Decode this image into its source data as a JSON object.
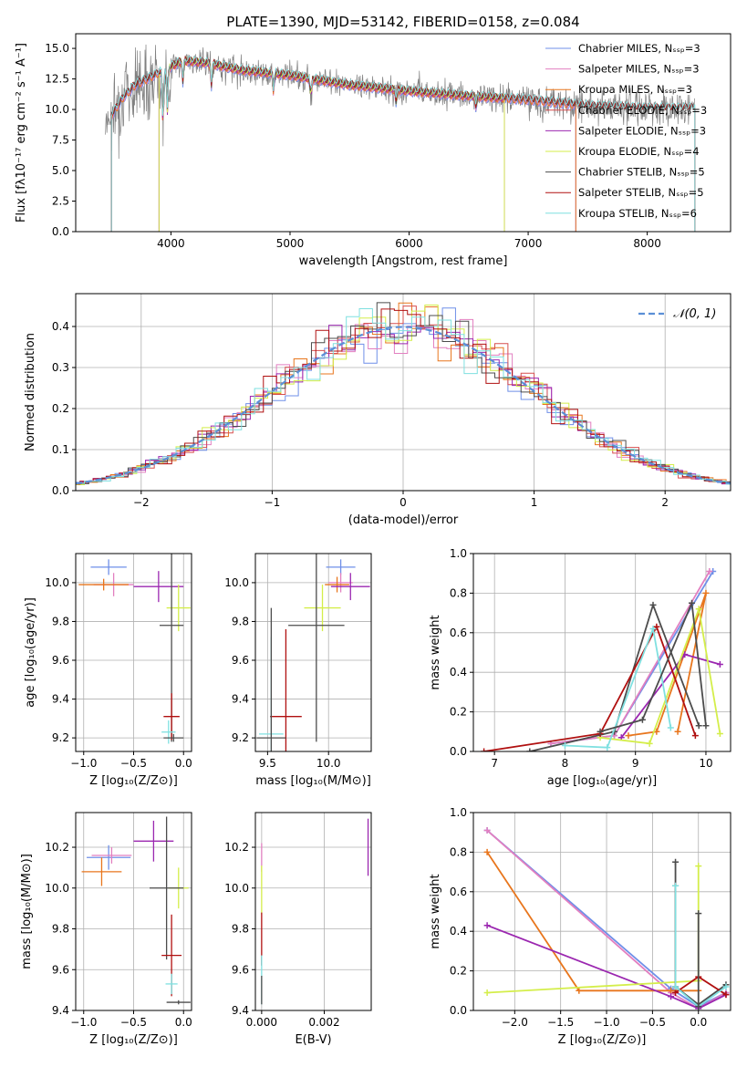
{
  "colors": {
    "Chabrier MILES": "#6f8fe8",
    "Salpeter MILES": "#e27fc0",
    "Kroupa MILES": "#e8761d",
    "Chabrier ELODIE": "#d64f4f",
    "Salpeter ELODIE": "#9b27b0",
    "Kroupa ELODIE": "#d4ee4a",
    "Chabrier STELIB": "#4c4c4c",
    "Salpeter STELIB": "#b01010",
    "Kroupa STELIB": "#7fe0e0",
    "gaussian": "#5b8fd6",
    "observed": "#808080"
  },
  "chart_data": [
    {
      "id": "spectrum",
      "type": "line",
      "title": "PLATE=1390, MJD=53142, FIBERID=0158, z=0.084",
      "xlabel": "wavelength [Angstrom, rest frame]",
      "ylabel": "Flux [fλ10⁻¹⁷ erg cm⁻² s⁻¹ A⁻¹]",
      "xlim": [
        3200,
        8700
      ],
      "ylim": [
        0,
        16.2
      ],
      "xticks": [
        4000,
        5000,
        6000,
        7000,
        8000
      ],
      "yticks": [
        0.0,
        2.5,
        5.0,
        7.5,
        10.0,
        12.5,
        15.0
      ],
      "legend_position": "top-right",
      "series": [
        {
          "name": "Chabrier MILES, Nₛₛₚ=3",
          "key": "Chabrier MILES",
          "range": [
            3500,
            7400
          ]
        },
        {
          "name": "Salpeter MILES, Nₛₛₚ=3",
          "key": "Salpeter MILES",
          "range": [
            3500,
            7400
          ]
        },
        {
          "name": "Kroupa MILES, Nₛₛₚ=3",
          "key": "Kroupa MILES",
          "range": [
            3500,
            7400
          ]
        },
        {
          "name": "Chabrier ELODIE, Nₛₛₚ=3",
          "key": "Chabrier ELODIE",
          "range": [
            3900,
            6800
          ]
        },
        {
          "name": "Salpeter ELODIE, Nₛₛₚ=3",
          "key": "Salpeter ELODIE",
          "range": [
            3900,
            6800
          ]
        },
        {
          "name": "Kroupa ELODIE, Nₛₛₚ=4",
          "key": "Kroupa ELODIE",
          "range": [
            3900,
            6800
          ]
        },
        {
          "name": "Chabrier STELIB, Nₛₛₚ=5",
          "key": "Chabrier STELIB",
          "range": [
            3500,
            8400
          ]
        },
        {
          "name": "Salpeter STELIB, Nₛₛₚ=5",
          "key": "Salpeter STELIB",
          "range": [
            3500,
            8400
          ]
        },
        {
          "name": "Kroupa STELIB, Nₛₛₚ=6",
          "key": "Kroupa STELIB",
          "range": [
            3500,
            8400
          ]
        }
      ],
      "continuum": [
        [
          3500,
          9.5
        ],
        [
          3600,
          11.0
        ],
        [
          3700,
          12.0
        ],
        [
          3900,
          13.0
        ],
        [
          4100,
          14.0
        ],
        [
          4300,
          13.8
        ],
        [
          4600,
          13.2
        ],
        [
          5000,
          12.8
        ],
        [
          5500,
          12.0
        ],
        [
          6000,
          11.5
        ],
        [
          6500,
          11.1
        ],
        [
          7000,
          10.8
        ],
        [
          7500,
          10.3
        ],
        [
          8000,
          10.1
        ],
        [
          8400,
          10.1
        ]
      ],
      "observed_range": [
        3450,
        8400
      ]
    },
    {
      "id": "residuals",
      "type": "histogram",
      "xlabel": "(data-model)/error",
      "ylabel": "Normed distribution",
      "xlim": [
        -2.5,
        2.5
      ],
      "ylim": [
        0,
        0.48
      ],
      "xticks": [
        -2,
        -1,
        0,
        1,
        2
      ],
      "yticks": [
        0.0,
        0.1,
        0.2,
        0.3,
        0.4
      ],
      "legend": "𝒩(0, 1)",
      "legend_position": "top-right",
      "bin_width": 0.1,
      "gaussian": {
        "mean": 0,
        "sigma": 1
      }
    },
    {
      "id": "age-vs-Z",
      "type": "errorbar",
      "xlabel": "Z [log₁₀(Z/Z⊙)]",
      "ylabel": "age  [log₁₀(age/yr)]",
      "xlim": [
        -1.08,
        0.08
      ],
      "ylim": [
        9.13,
        10.15
      ],
      "xticks": [
        -1.0,
        -0.5,
        0.0
      ],
      "yticks": [
        9.2,
        9.4,
        9.6,
        9.8,
        10.0
      ],
      "points": [
        {
          "key": "Chabrier MILES",
          "x": -0.75,
          "xerr": 0.18,
          "y": 10.08,
          "yerr": 0.04
        },
        {
          "key": "Salpeter MILES",
          "x": -0.7,
          "xerr": 0.2,
          "y": 9.99,
          "yerr": 0.06
        },
        {
          "key": "Kroupa MILES",
          "x": -0.8,
          "xerr": 0.25,
          "y": 9.99,
          "yerr": 0.03
        },
        {
          "key": "Salpeter ELODIE",
          "x": -0.25,
          "xerr": 0.25,
          "y": 9.98,
          "yerr": 0.08
        },
        {
          "key": "Kroupa ELODIE",
          "x": -0.05,
          "xerr": 0.12,
          "y": 9.87,
          "yerr": 0.12
        },
        {
          "key": "Chabrier STELIB",
          "x": -0.12,
          "xerr": 0.12,
          "y": 9.78,
          "yerr": 0.6
        },
        {
          "key": "Salpeter STELIB",
          "x": -0.12,
          "xerr": 0.08,
          "y": 9.31,
          "yerr": 0.12
        },
        {
          "key": "Kroupa STELIB",
          "x": -0.15,
          "xerr": 0.07,
          "y": 9.23,
          "yerr": 0.06
        },
        {
          "key": "Chabrier STELIB",
          "x": -0.1,
          "xerr": 0.1,
          "y": 9.2,
          "yerr": 0.02
        }
      ]
    },
    {
      "id": "age-vs-mass",
      "type": "errorbar",
      "xlabel": "mass [log₁₀(M/M⊙)]",
      "xlim": [
        9.4,
        10.35
      ],
      "ylim": [
        9.13,
        10.15
      ],
      "xticks": [
        9.5,
        10.0
      ],
      "yticks": [
        9.2,
        9.4,
        9.6,
        9.8,
        10.0
      ],
      "points": [
        {
          "key": "Chabrier MILES",
          "x": 10.1,
          "xerr": 0.12,
          "y": 10.08,
          "yerr": 0.04
        },
        {
          "key": "Salpeter MILES",
          "x": 10.1,
          "xerr": 0.1,
          "y": 10.0,
          "yerr": 0.05
        },
        {
          "key": "Kroupa MILES",
          "x": 10.07,
          "xerr": 0.1,
          "y": 9.99,
          "yerr": 0.04
        },
        {
          "key": "Salpeter ELODIE",
          "x": 10.18,
          "xerr": 0.16,
          "y": 9.98,
          "yerr": 0.07
        },
        {
          "key": "Kroupa ELODIE",
          "x": 9.95,
          "xerr": 0.15,
          "y": 9.87,
          "yerr": 0.12
        },
        {
          "key": "Chabrier STELIB",
          "x": 9.9,
          "xerr": 0.23,
          "y": 9.78,
          "yerr": 0.6
        },
        {
          "key": "Salpeter STELIB",
          "x": 9.65,
          "xerr": 0.13,
          "y": 9.31,
          "yerr": 0.45
        },
        {
          "key": "Kroupa STELIB",
          "x": 9.53,
          "xerr": 0.1,
          "y": 9.22,
          "yerr": 0.5
        },
        {
          "key": "Chabrier STELIB",
          "x": 9.53,
          "xerr": 0.12,
          "y": 9.2,
          "yerr": 0.67
        }
      ]
    },
    {
      "id": "mass-weight-vs-age",
      "type": "line",
      "xlabel": "age  [log₁₀(age/yr)]",
      "ylabel": "mass weight",
      "xlim": [
        6.7,
        10.35
      ],
      "ylim": [
        0,
        1
      ],
      "xticks": [
        7,
        8,
        9,
        10
      ],
      "yticks": [
        0.0,
        0.2,
        0.4,
        0.6,
        0.8,
        1.0
      ],
      "series": [
        {
          "key": "Chabrier MILES",
          "points": [
            [
              7.8,
              0.04
            ],
            [
              8.7,
              0.08
            ],
            [
              10.1,
              0.91
            ]
          ]
        },
        {
          "key": "Salpeter MILES",
          "points": [
            [
              7.8,
              0.04
            ],
            [
              8.7,
              0.08
            ],
            [
              10.05,
              0.91
            ]
          ]
        },
        {
          "key": "Kroupa MILES",
          "points": [
            [
              8.9,
              0.08
            ],
            [
              9.3,
              0.1
            ],
            [
              10.0,
              0.8
            ],
            [
              9.6,
              0.1
            ]
          ]
        },
        {
          "key": "Salpeter ELODIE",
          "points": [
            [
              8.8,
              0.07
            ],
            [
              9.7,
              0.49
            ],
            [
              10.2,
              0.44
            ]
          ]
        },
        {
          "key": "Kroupa ELODIE",
          "points": [
            [
              8.5,
              0.07
            ],
            [
              9.2,
              0.04
            ],
            [
              9.9,
              0.72
            ],
            [
              10.2,
              0.09
            ]
          ]
        },
        {
          "key": "Chabrier STELIB",
          "points": [
            [
              7.5,
              0.0
            ],
            [
              8.7,
              0.1
            ],
            [
              9.25,
              0.74
            ],
            [
              9.9,
              0.13
            ]
          ]
        },
        {
          "key": "Salpeter STELIB",
          "points": [
            [
              6.85,
              0.0
            ],
            [
              8.5,
              0.09
            ],
            [
              9.3,
              0.63
            ],
            [
              9.85,
              0.08
            ]
          ]
        },
        {
          "key": "Kroupa STELIB",
          "points": [
            [
              8.0,
              0.03
            ],
            [
              8.6,
              0.02
            ],
            [
              9.25,
              0.62
            ],
            [
              9.5,
              0.12
            ]
          ]
        },
        {
          "key": "Chabrier STELIB",
          "points": [
            [
              8.5,
              0.1
            ],
            [
              9.1,
              0.16
            ],
            [
              9.8,
              0.75
            ],
            [
              10.0,
              0.13
            ]
          ]
        }
      ]
    },
    {
      "id": "mass-vs-Z",
      "type": "errorbar",
      "xlabel": "Z [log₁₀(Z/Z⊙)]",
      "ylabel": "mass [log₁₀(M/M⊙)]",
      "xlim": [
        -1.08,
        0.08
      ],
      "ylim": [
        9.4,
        10.37
      ],
      "xticks": [
        -1.0,
        -0.5,
        0.0
      ],
      "yticks": [
        9.4,
        9.6,
        9.8,
        10.0,
        10.2
      ],
      "points": [
        {
          "key": "Chabrier MILES",
          "x": -0.75,
          "xerr": 0.22,
          "y": 10.15,
          "yerr": 0.06
        },
        {
          "key": "Salpeter MILES",
          "x": -0.72,
          "xerr": 0.2,
          "y": 10.16,
          "yerr": 0.04
        },
        {
          "key": "Kroupa MILES",
          "x": -0.82,
          "xerr": 0.2,
          "y": 10.08,
          "yerr": 0.07
        },
        {
          "key": "Salpeter ELODIE",
          "x": -0.3,
          "xerr": 0.2,
          "y": 10.23,
          "yerr": 0.1
        },
        {
          "key": "Kroupa ELODIE",
          "x": -0.05,
          "xerr": 0.1,
          "y": 10.0,
          "yerr": 0.1
        },
        {
          "key": "Chabrier STELIB",
          "x": -0.17,
          "xerr": 0.17,
          "y": 10.0,
          "yerr": 0.35
        },
        {
          "key": "Salpeter STELIB",
          "x": -0.12,
          "xerr": 0.1,
          "y": 9.67,
          "yerr": 0.2
        },
        {
          "key": "Kroupa STELIB",
          "x": -0.12,
          "xerr": 0.06,
          "y": 9.53,
          "yerr": 0.05
        },
        {
          "key": "Chabrier STELIB",
          "x": -0.05,
          "xerr": 0.12,
          "y": 9.44,
          "yerr": 0.01
        },
        {
          "key": "Chabrier STELIB",
          "x": -0.7,
          "xerr": 0.35,
          "y": 9.39,
          "yerr": 0.01
        }
      ]
    },
    {
      "id": "mass-vs-EBV",
      "type": "errorbar",
      "xlabel": "E(B-V)",
      "xlim": [
        -0.0002,
        0.0035
      ],
      "ylim": [
        9.4,
        10.37
      ],
      "xticks": [
        0.0,
        0.002
      ],
      "xtick_labels": [
        "0.000",
        "0.002"
      ],
      "yticks": [
        9.4,
        9.6,
        9.8,
        10.0,
        10.2
      ],
      "points": [
        {
          "key": "Salpeter ELODIE",
          "x": 0.0034,
          "xerr": 0,
          "y": 10.2,
          "yerr": 0.14
        },
        {
          "key": "Salpeter MILES",
          "x": 0.0,
          "xerr": 0,
          "y": 10.15,
          "yerr": 0.07
        },
        {
          "key": "Kroupa ELODIE",
          "x": 0.0,
          "xerr": 0,
          "y": 9.99,
          "yerr": 0.12
        },
        {
          "key": "Salpeter STELIB",
          "x": 0.0,
          "xerr": 0,
          "y": 9.75,
          "yerr": 0.13
        },
        {
          "key": "Kroupa STELIB",
          "x": 0.0,
          "xerr": 0,
          "y": 9.55,
          "yerr": 0.12
        },
        {
          "key": "Chabrier STELIB",
          "x": 0.0,
          "xerr": 0,
          "y": 9.5,
          "yerr": 0.07
        }
      ]
    },
    {
      "id": "mass-weight-vs-Z",
      "type": "line",
      "xlabel": "Z [log₁₀(Z/Z⊙)]",
      "ylabel": "mass weight",
      "xlim": [
        -2.45,
        0.35
      ],
      "ylim": [
        0,
        1
      ],
      "xticks": [
        -2.0,
        -1.5,
        -1.0,
        -0.5,
        0.0
      ],
      "yticks": [
        0.0,
        0.2,
        0.4,
        0.6,
        0.8,
        1.0
      ],
      "series": [
        {
          "key": "Chabrier MILES",
          "points": [
            [
              -2.3,
              0.91
            ],
            [
              -0.3,
              0.11
            ],
            [
              0.0,
              0.02
            ],
            [
              0.3,
              0.09
            ]
          ]
        },
        {
          "key": "Salpeter MILES",
          "points": [
            [
              -2.3,
              0.91
            ],
            [
              -0.3,
              0.09
            ],
            [
              0.0,
              0.01
            ],
            [
              0.3,
              0.09
            ]
          ]
        },
        {
          "key": "Kroupa MILES",
          "points": [
            [
              -2.3,
              0.8
            ],
            [
              -1.3,
              0.1
            ],
            [
              -0.3,
              0.1
            ],
            [
              0.0,
              0.1
            ]
          ]
        },
        {
          "key": "Salpeter ELODIE",
          "points": [
            [
              -2.3,
              0.43
            ],
            [
              -0.3,
              0.07
            ],
            [
              0.0,
              0.01
            ],
            [
              0.3,
              0.08
            ]
          ]
        },
        {
          "key": "Kroupa ELODIE",
          "points": [
            [
              -2.3,
              0.09
            ],
            [
              0.0,
              0.15
            ],
            [
              0.0,
              0.73
            ]
          ]
        },
        {
          "key": "Chabrier STELIB",
          "points": [
            [
              -0.25,
              0.75
            ],
            [
              -0.25,
              0.12
            ],
            [
              0.0,
              0.03
            ],
            [
              0.3,
              0.13
            ]
          ]
        },
        {
          "key": "Salpeter STELIB",
          "points": [
            [
              -0.25,
              0.63
            ],
            [
              -0.25,
              0.09
            ],
            [
              0.0,
              0.17
            ],
            [
              0.3,
              0.08
            ]
          ]
        },
        {
          "key": "Kroupa STELIB",
          "points": [
            [
              -0.25,
              0.63
            ],
            [
              -0.25,
              0.12
            ],
            [
              0.0,
              0.02
            ],
            [
              0.3,
              0.12
            ]
          ]
        },
        {
          "key": "Chabrier STELIB",
          "points": [
            [
              0.0,
              0.49
            ],
            [
              0.0,
              0.02
            ]
          ]
        }
      ]
    }
  ]
}
